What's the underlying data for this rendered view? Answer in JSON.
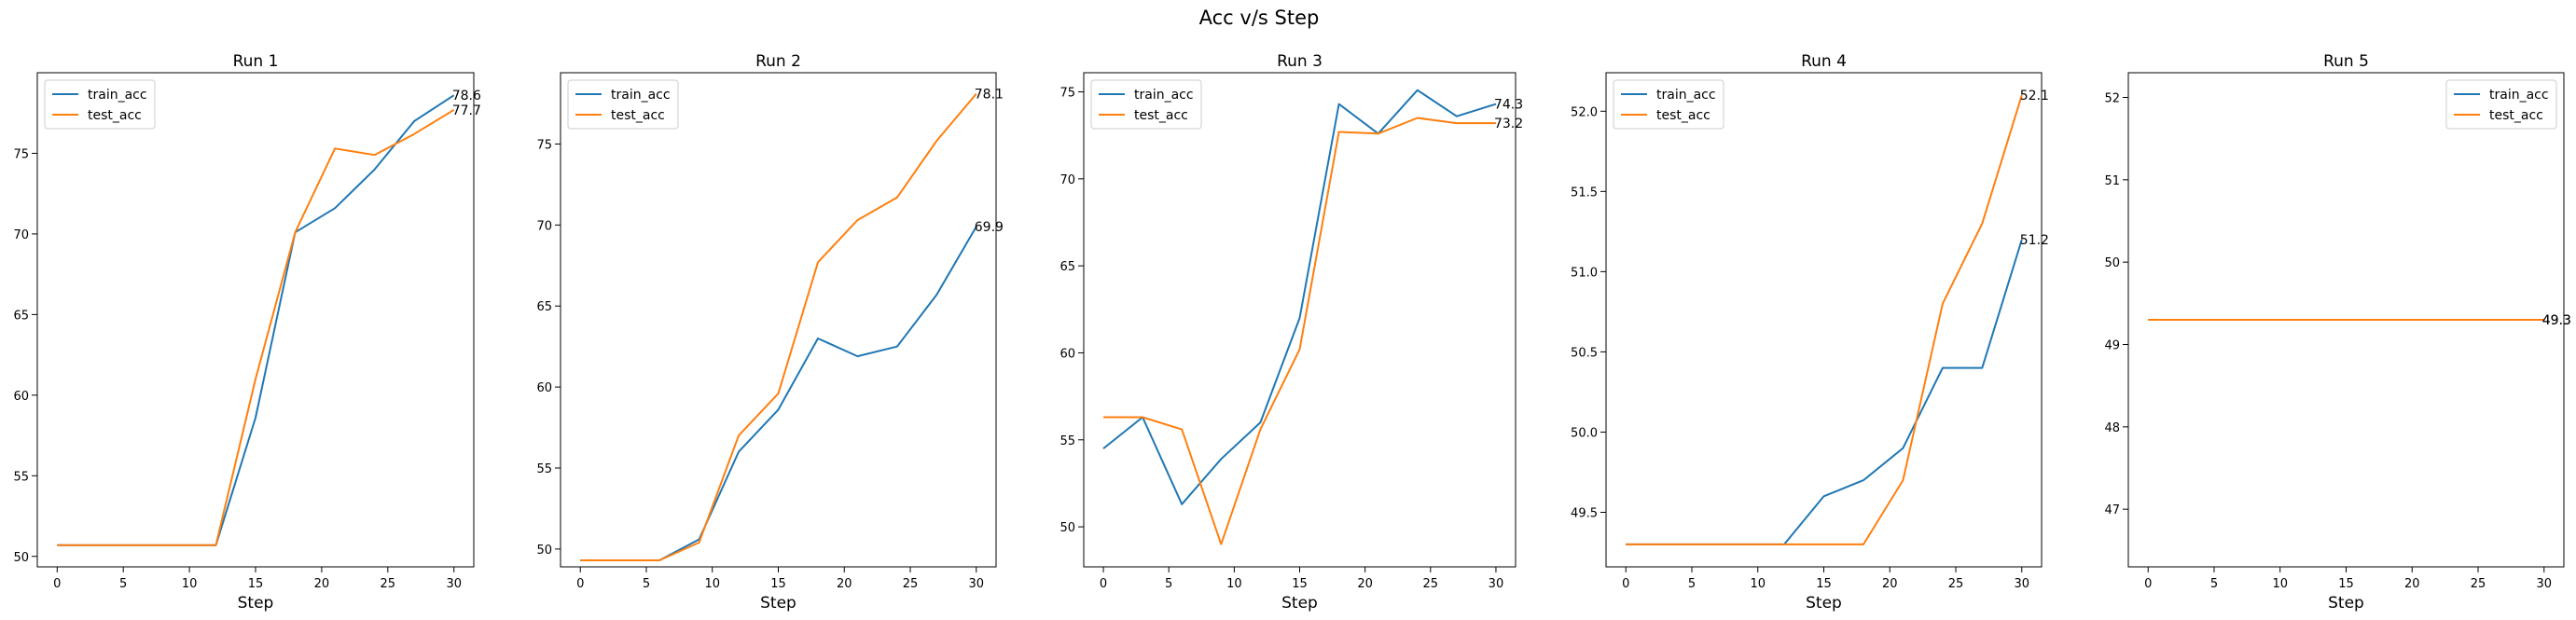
{
  "figure": {
    "title": "Acc v/s Step"
  },
  "colors": {
    "train_acc": "#1f77b4",
    "test_acc": "#ff7f0e",
    "axes": "#000000",
    "legend_border": "#cccccc"
  },
  "chart_data": [
    {
      "type": "line",
      "title": "Run 1",
      "xlabel": "Step",
      "ylabel": "",
      "xlim": [
        -1.5,
        31.5
      ],
      "ylim": [
        49.35,
        80.0
      ],
      "xticks": [
        0,
        5,
        10,
        15,
        20,
        25,
        30
      ],
      "yticks": [
        50,
        55,
        60,
        65,
        70,
        75
      ],
      "legend": "top-left",
      "x": [
        0,
        3,
        6,
        9,
        12,
        15,
        18,
        21,
        24,
        27,
        30
      ],
      "series": [
        {
          "name": "train_acc",
          "values": [
            50.7,
            50.7,
            50.7,
            50.7,
            50.7,
            58.6,
            70.1,
            71.6,
            74.0,
            77.0,
            78.6
          ]
        },
        {
          "name": "test_acc",
          "values": [
            50.7,
            50.7,
            50.7,
            50.7,
            50.7,
            61.0,
            70.1,
            75.3,
            74.9,
            76.2,
            77.7
          ]
        }
      ],
      "end_labels": [
        {
          "series": "train_acc",
          "text": "78.6"
        },
        {
          "series": "test_acc",
          "text": "77.7"
        }
      ]
    },
    {
      "type": "line",
      "title": "Run 2",
      "xlabel": "Step",
      "ylabel": "",
      "xlim": [
        -1.5,
        31.5
      ],
      "ylim": [
        48.9,
        79.4
      ],
      "xticks": [
        0,
        5,
        10,
        15,
        20,
        25,
        30
      ],
      "yticks": [
        50,
        55,
        60,
        65,
        70,
        75
      ],
      "legend": "top-left",
      "x": [
        0,
        3,
        6,
        9,
        12,
        15,
        18,
        21,
        24,
        27,
        30
      ],
      "series": [
        {
          "name": "train_acc",
          "values": [
            49.3,
            49.3,
            49.3,
            50.6,
            56.0,
            58.6,
            63.0,
            61.9,
            62.5,
            65.7,
            69.9
          ]
        },
        {
          "name": "test_acc",
          "values": [
            49.3,
            49.3,
            49.3,
            50.4,
            57.0,
            59.6,
            67.7,
            70.3,
            71.7,
            75.2,
            78.1
          ]
        }
      ],
      "end_labels": [
        {
          "series": "train_acc",
          "text": "69.9"
        },
        {
          "series": "test_acc",
          "text": "78.1"
        }
      ]
    },
    {
      "type": "line",
      "title": "Run 3",
      "xlabel": "Step",
      "ylabel": "",
      "xlim": [
        -1.5,
        31.5
      ],
      "ylim": [
        47.7,
        76.1
      ],
      "xticks": [
        0,
        5,
        10,
        15,
        20,
        25,
        30
      ],
      "yticks": [
        50,
        55,
        60,
        65,
        70,
        75
      ],
      "legend": "top-left",
      "x": [
        0,
        3,
        6,
        9,
        12,
        15,
        18,
        21,
        24,
        27,
        30
      ],
      "series": [
        {
          "name": "train_acc",
          "values": [
            54.5,
            56.3,
            51.3,
            53.9,
            56.0,
            62.0,
            74.3,
            72.6,
            75.1,
            73.6,
            74.3
          ]
        },
        {
          "name": "test_acc",
          "values": [
            56.3,
            56.3,
            55.6,
            49.0,
            55.6,
            60.2,
            72.7,
            72.6,
            73.5,
            73.2,
            73.2
          ]
        }
      ],
      "end_labels": [
        {
          "series": "train_acc",
          "text": "74.3"
        },
        {
          "series": "test_acc",
          "text": "73.2"
        }
      ]
    },
    {
      "type": "line",
      "title": "Run 4",
      "xlabel": "Step",
      "ylabel": "",
      "xlim": [
        -1.5,
        31.5
      ],
      "ylim": [
        49.16,
        52.24
      ],
      "xticks": [
        0,
        5,
        10,
        15,
        20,
        25,
        30
      ],
      "yticks": [
        49.5,
        50.0,
        50.5,
        51.0,
        51.5,
        52.0
      ],
      "ytick_labels": [
        "49.5",
        "50.0",
        "50.5",
        "51.0",
        "51.5",
        "52.0"
      ],
      "legend": "top-left",
      "x": [
        0,
        3,
        6,
        9,
        12,
        15,
        18,
        21,
        24,
        27,
        30
      ],
      "series": [
        {
          "name": "train_acc",
          "values": [
            49.3,
            49.3,
            49.3,
            49.3,
            49.3,
            49.6,
            49.7,
            49.9,
            50.4,
            50.4,
            51.2
          ]
        },
        {
          "name": "test_acc",
          "values": [
            49.3,
            49.3,
            49.3,
            49.3,
            49.3,
            49.3,
            49.3,
            49.7,
            50.8,
            51.3,
            52.1
          ]
        }
      ],
      "end_labels": [
        {
          "series": "train_acc",
          "text": "51.2"
        },
        {
          "series": "test_acc",
          "text": "52.1"
        }
      ]
    },
    {
      "type": "line",
      "title": "Run 5",
      "xlabel": "Step",
      "ylabel": "",
      "xlim": [
        -1.5,
        31.5
      ],
      "ylim": [
        46.3,
        52.3
      ],
      "xticks": [
        0,
        5,
        10,
        15,
        20,
        25,
        30
      ],
      "yticks": [
        47,
        48,
        49,
        50,
        51,
        52
      ],
      "legend": "top-right",
      "x": [
        0,
        3,
        6,
        9,
        12,
        15,
        18,
        21,
        24,
        27,
        30
      ],
      "series": [
        {
          "name": "train_acc",
          "values": [
            49.3,
            49.3,
            49.3,
            49.3,
            49.3,
            49.3,
            49.3,
            49.3,
            49.3,
            49.3,
            49.3
          ]
        },
        {
          "name": "test_acc",
          "values": [
            49.3,
            49.3,
            49.3,
            49.3,
            49.3,
            49.3,
            49.3,
            49.3,
            49.3,
            49.3,
            49.3
          ]
        }
      ],
      "end_labels": [
        {
          "series": "train_acc",
          "text": "49.3"
        },
        {
          "series": "test_acc",
          "text": "49.3"
        }
      ]
    }
  ]
}
